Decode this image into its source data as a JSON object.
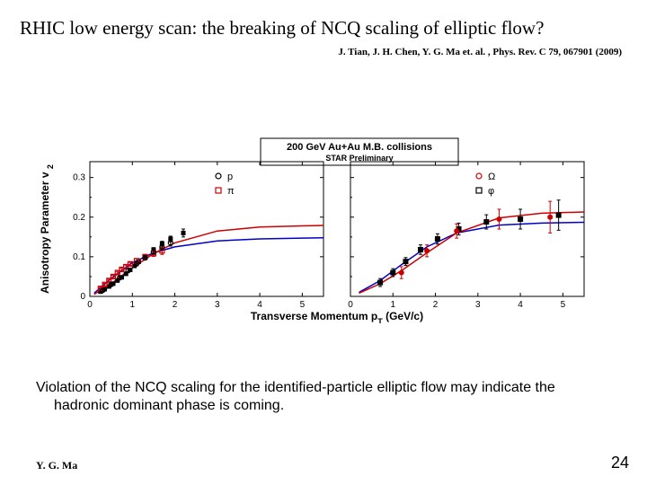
{
  "title": "RHIC low energy scan: the breaking of NCQ scaling of elliptic flow?",
  "citation": "J. Tian, J. H. Chen, Y. G. Ma et. al. , Phys. Rev. C 79, 067901 (2009)",
  "conclusion": "Violation of the NCQ scaling for the identified-particle elliptic flow may indicate the hadronic dominant phase is coming.",
  "footer_author": "Y. G. Ma",
  "page_number": "24",
  "chart": {
    "type": "scatter-with-fit",
    "header_box_line1": "200 GeV Au+Au M.B. collisions",
    "header_box_line2": "STAR Preliminary",
    "ylabel": "Anisotropy Parameter v",
    "ylabel_sub": "2",
    "xlabel_prefix": "Transverse Momentum p",
    "xlabel_sub": "T",
    "xlabel_suffix": " (GeV/c)",
    "ylim": [
      0,
      0.34
    ],
    "yticks": [
      0,
      0.1,
      0.2,
      0.3
    ],
    "xlim": [
      0,
      5.5
    ],
    "xticks": [
      0,
      1,
      2,
      3,
      4,
      5
    ],
    "background_color": "#ffffff",
    "axis_color": "#000000",
    "label_fontsize": 12,
    "tick_fontsize": 10,
    "panels": [
      {
        "legend": [
          {
            "label": "p",
            "marker": "circle-open",
            "color": "#000000"
          },
          {
            "label": "π",
            "marker": "square-open",
            "color": "#cc0000"
          }
        ],
        "series": [
          {
            "name": "p",
            "marker": "square-filled",
            "color": "#000000",
            "msize": 5,
            "points": [
              [
                0.25,
                0.012
              ],
              [
                0.35,
                0.018
              ],
              [
                0.45,
                0.025
              ],
              [
                0.55,
                0.032
              ],
              [
                0.65,
                0.04
              ],
              [
                0.75,
                0.048
              ],
              [
                0.85,
                0.057
              ],
              [
                0.95,
                0.067
              ],
              [
                1.05,
                0.077
              ],
              [
                1.15,
                0.087
              ],
              [
                1.3,
                0.1
              ],
              [
                1.5,
                0.118
              ],
              [
                1.7,
                0.133
              ],
              [
                1.9,
                0.145
              ],
              [
                2.2,
                0.16
              ]
            ],
            "yerr": [
              0.003,
              0.003,
              0.003,
              0.003,
              0.003,
              0.003,
              0.003,
              0.003,
              0.004,
              0.004,
              0.004,
              0.005,
              0.006,
              0.007,
              0.01
            ]
          },
          {
            "name": "pi_open",
            "marker": "square-open",
            "color": "#cc0000",
            "msize": 5,
            "points": [
              [
                0.25,
                0.02
              ],
              [
                0.35,
                0.03
              ],
              [
                0.45,
                0.04
              ],
              [
                0.55,
                0.05
              ],
              [
                0.65,
                0.06
              ],
              [
                0.75,
                0.068
              ],
              [
                0.85,
                0.075
              ],
              [
                0.95,
                0.082
              ],
              [
                1.1,
                0.09
              ],
              [
                1.3,
                0.1
              ],
              [
                1.5,
                0.108
              ],
              [
                1.7,
                0.115
              ]
            ],
            "yerr": [
              0.003,
              0.003,
              0.003,
              0.003,
              0.003,
              0.003,
              0.004,
              0.004,
              0.005,
              0.006,
              0.007,
              0.009
            ]
          },
          {
            "name": "p_open",
            "marker": "circle-open",
            "color": "#000000",
            "msize": 5,
            "points": [
              [
                0.3,
                0.015
              ],
              [
                0.5,
                0.03
              ],
              [
                0.7,
                0.047
              ],
              [
                0.9,
                0.065
              ],
              [
                1.1,
                0.082
              ],
              [
                1.3,
                0.097
              ],
              [
                1.5,
                0.112
              ],
              [
                1.7,
                0.125
              ],
              [
                1.9,
                0.135
              ]
            ],
            "yerr": [
              0.003,
              0.003,
              0.003,
              0.004,
              0.004,
              0.005,
              0.006,
              0.007,
              0.008
            ]
          }
        ],
        "fit_curves": [
          {
            "color": "#0000cc",
            "width": 1.5,
            "pts": [
              [
                0.1,
                0.008
              ],
              [
                0.5,
                0.045
              ],
              [
                1.0,
                0.085
              ],
              [
                1.5,
                0.11
              ],
              [
                2.0,
                0.125
              ],
              [
                3.0,
                0.14
              ],
              [
                4.0,
                0.145
              ],
              [
                5.0,
                0.147
              ],
              [
                5.5,
                0.148
              ]
            ]
          },
          {
            "color": "#cc0000",
            "width": 1.5,
            "pts": [
              [
                0.1,
                0.005
              ],
              [
                0.5,
                0.032
              ],
              [
                1.0,
                0.072
              ],
              [
                1.5,
                0.108
              ],
              [
                2.0,
                0.135
              ],
              [
                3.0,
                0.165
              ],
              [
                4.0,
                0.175
              ],
              [
                5.0,
                0.178
              ],
              [
                5.5,
                0.179
              ]
            ]
          }
        ]
      },
      {
        "legend": [
          {
            "label": "Ω",
            "marker": "circle-open",
            "color": "#cc0000"
          },
          {
            "label": "φ",
            "marker": "square-open",
            "color": "#000000"
          }
        ],
        "series": [
          {
            "name": "phi",
            "marker": "square-filled",
            "color": "#000000",
            "msize": 6,
            "points": [
              [
                0.7,
                0.035
              ],
              [
                1.0,
                0.06
              ],
              [
                1.3,
                0.088
              ],
              [
                1.65,
                0.118
              ],
              [
                2.05,
                0.145
              ],
              [
                2.55,
                0.17
              ],
              [
                3.2,
                0.188
              ],
              [
                4.0,
                0.195
              ],
              [
                4.9,
                0.205
              ]
            ],
            "yerr": [
              0.01,
              0.01,
              0.01,
              0.012,
              0.013,
              0.015,
              0.018,
              0.025,
              0.038
            ]
          },
          {
            "name": "omega",
            "marker": "circle-filled",
            "color": "#cc0000",
            "msize": 6,
            "points": [
              [
                1.2,
                0.06
              ],
              [
                1.8,
                0.115
              ],
              [
                2.5,
                0.165
              ],
              [
                3.5,
                0.195
              ],
              [
                4.7,
                0.2
              ]
            ],
            "yerr": [
              0.015,
              0.015,
              0.018,
              0.025,
              0.04
            ]
          }
        ],
        "fit_curves": [
          {
            "color": "#0000cc",
            "width": 1.5,
            "pts": [
              [
                0.2,
                0.01
              ],
              [
                0.7,
                0.04
              ],
              [
                1.2,
                0.08
              ],
              [
                1.8,
                0.125
              ],
              [
                2.5,
                0.16
              ],
              [
                3.5,
                0.18
              ],
              [
                4.5,
                0.185
              ],
              [
                5.5,
                0.187
              ]
            ]
          },
          {
            "color": "#cc0000",
            "width": 1.5,
            "pts": [
              [
                0.2,
                0.008
              ],
              [
                0.7,
                0.032
              ],
              [
                1.2,
                0.065
              ],
              [
                1.8,
                0.11
              ],
              [
                2.5,
                0.16
              ],
              [
                3.5,
                0.198
              ],
              [
                4.5,
                0.21
              ],
              [
                5.5,
                0.213
              ]
            ]
          }
        ]
      }
    ]
  }
}
